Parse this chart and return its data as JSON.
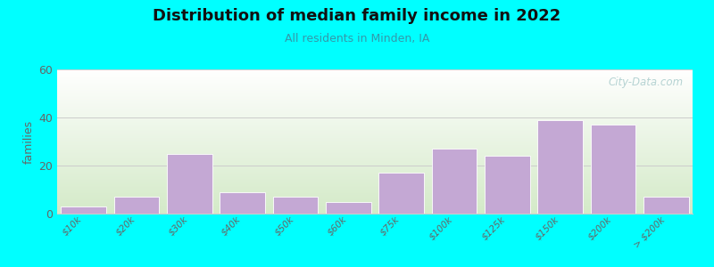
{
  "title": "Distribution of median family income in 2022",
  "subtitle": "All residents in Minden, IA",
  "ylabel": "families",
  "background_outer": "#00FFFF",
  "bar_color": "#C4A8D4",
  "bar_edge_color": "#FFFFFF",
  "ylim": [
    0,
    60
  ],
  "yticks": [
    0,
    20,
    40,
    60
  ],
  "categories": [
    "$10k",
    "$20k",
    "$30k",
    "$40k",
    "$50k",
    "$60k",
    "$75k",
    "$100k",
    "$125k",
    "$150k",
    "$200k",
    "> $200k"
  ],
  "values": [
    3,
    7,
    25,
    9,
    7,
    5,
    17,
    27,
    24,
    39,
    37,
    7
  ],
  "watermark": "City-Data.com",
  "bg_gradient_top": "#FFFFFF",
  "bg_gradient_bottom": "#D4EAC8",
  "title_fontsize": 13,
  "subtitle_fontsize": 9,
  "subtitle_color": "#3399AA",
  "ylabel_fontsize": 9,
  "ylabel_color": "#666666",
  "tick_label_color": "#666666",
  "tick_label_fontsize": 7.5,
  "grid_color": "#CCCCCC",
  "spine_color": "#CCCCCC"
}
